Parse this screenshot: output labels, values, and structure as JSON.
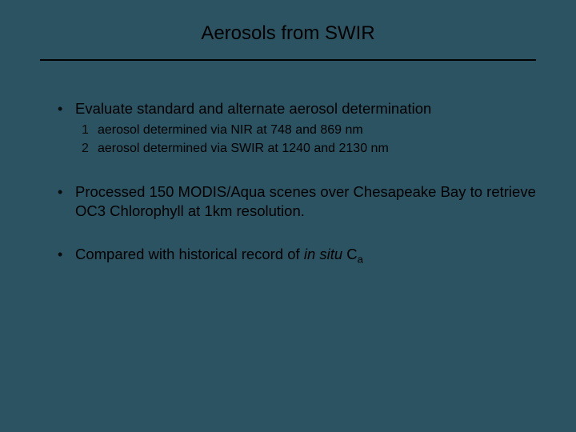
{
  "background_color": "#2b5362",
  "text_color": "#000000",
  "divider_color": "#000000",
  "title": "Aerosols from SWIR",
  "title_fontsize": 24,
  "body_fontsize": 18.5,
  "sub_fontsize": 16,
  "bullets": [
    {
      "text": "Evaluate standard and alternate aerosol determination",
      "sub": [
        {
          "num": "1",
          "text": "aerosol determined via NIR at 748 and 869 nm"
        },
        {
          "num": "2",
          "text": "aerosol determined via SWIR at 1240 and 2130 nm"
        }
      ]
    },
    {
      "text": "Processed 150 MODIS/Aqua scenes over Chesapeake Bay to retrieve OC3 Chlorophyll at 1km resolution."
    },
    {
      "text_prefix": "Compared with historical record of ",
      "italic_phrase": "in situ",
      "text_suffix": " C",
      "subscript": "a"
    }
  ]
}
